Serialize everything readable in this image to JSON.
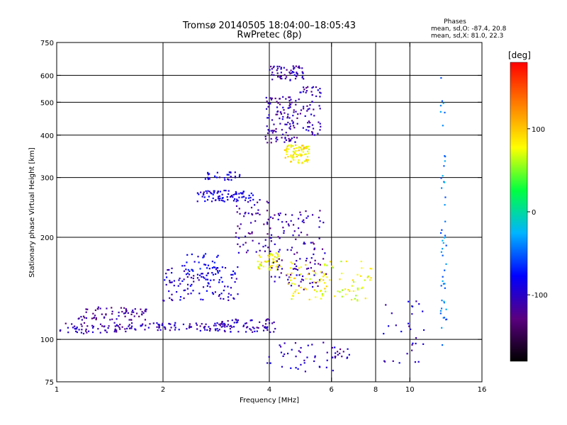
{
  "chart_data": {
    "type": "scatter",
    "title": "Tromsø 20140505 18:04:00–18:05:43",
    "subtitle": "RwPretec (8p)",
    "xlabel": "Frequency [MHz]",
    "ylabel": "Stationary phase Virtual Height [km]",
    "x_scale": "log",
    "y_scale": "log",
    "xlim": [
      1,
      16
    ],
    "ylim": [
      75,
      750
    ],
    "x_ticks": [
      1,
      2,
      4,
      6,
      8,
      10,
      16
    ],
    "y_ticks": [
      75,
      100,
      200,
      300,
      400,
      500,
      600,
      750
    ],
    "x_grid": [
      2,
      4,
      6,
      8,
      10
    ],
    "y_grid": [
      100,
      200,
      300,
      400,
      500,
      600
    ],
    "phase_legend": {
      "title": "Phases",
      "lines": [
        "mean, sd,O: -87.4, 20.8",
        "mean, sd,X:  81.0, 22.3"
      ]
    },
    "colorbar": {
      "label": "[deg]",
      "range": [
        -180,
        180
      ],
      "ticks": [
        100,
        0,
        -100
      ],
      "colors": [
        "#000000",
        "#5a0080",
        "#0000ff",
        "#00b4ff",
        "#00ff40",
        "#ffff00",
        "#ff8000",
        "#ff0000"
      ]
    },
    "clusters": [
      {
        "x": [
          1.02,
          1.6
        ],
        "y": [
          104,
          112
        ],
        "phase": -110,
        "n": 60
      },
      {
        "x": [
          1.15,
          1.8
        ],
        "y": [
          114,
          125
        ],
        "phase": -118,
        "n": 70
      },
      {
        "x": [
          1.6,
          3.0
        ],
        "y": [
          106,
          112
        ],
        "phase": -105,
        "n": 80
      },
      {
        "x": [
          2.0,
          3.3
        ],
        "y": [
          130,
          165
        ],
        "phase": -95,
        "n": 110
      },
      {
        "x": [
          2.3,
          2.9
        ],
        "y": [
          150,
          180
        ],
        "phase": -80,
        "n": 40
      },
      {
        "x": [
          2.9,
          4.2
        ],
        "y": [
          105,
          115
        ],
        "phase": -105,
        "n": 70
      },
      {
        "x": [
          2.5,
          3.6
        ],
        "y": [
          255,
          275
        ],
        "phase": -90,
        "n": 80
      },
      {
        "x": [
          2.6,
          3.3
        ],
        "y": [
          295,
          312
        ],
        "phase": -90,
        "n": 30
      },
      {
        "x": [
          3.2,
          4.0
        ],
        "y": [
          180,
          260
        ],
        "phase": -110,
        "n": 60
      },
      {
        "x": [
          3.7,
          4.3
        ],
        "y": [
          160,
          180
        ],
        "phase": 80,
        "n": 50
      },
      {
        "x": [
          3.9,
          4.8
        ],
        "y": [
          380,
          520
        ],
        "phase": -110,
        "n": 110
      },
      {
        "x": [
          4.0,
          5.0
        ],
        "y": [
          580,
          640
        ],
        "phase": -110,
        "n": 60
      },
      {
        "x": [
          4.4,
          5.2
        ],
        "y": [
          330,
          375
        ],
        "phase": 85,
        "n": 80
      },
      {
        "x": [
          4.8,
          5.6
        ],
        "y": [
          400,
          560
        ],
        "phase": -105,
        "n": 60
      },
      {
        "x": [
          4.0,
          5.8
        ],
        "y": [
          140,
          240
        ],
        "phase": -110,
        "n": 130
      },
      {
        "x": [
          4.5,
          5.8
        ],
        "y": [
          130,
          170
        ],
        "phase": 80,
        "n": 50
      },
      {
        "x": [
          5.5,
          7.8
        ],
        "y": [
          130,
          170
        ],
        "phase": 75,
        "n": 50
      },
      {
        "x": [
          3.9,
          6.2
        ],
        "y": [
          80,
          98
        ],
        "phase": -100,
        "n": 40
      },
      {
        "x": [
          6.0,
          6.8
        ],
        "y": [
          88,
          94
        ],
        "phase": -110,
        "n": 15
      },
      {
        "x": [
          12.2,
          12.7
        ],
        "y": [
          95,
          620
        ],
        "phase": -40,
        "n": 50
      },
      {
        "x": [
          8.4,
          11.0
        ],
        "y": [
          85,
          130
        ],
        "phase": -100,
        "n": 30
      }
    ]
  }
}
